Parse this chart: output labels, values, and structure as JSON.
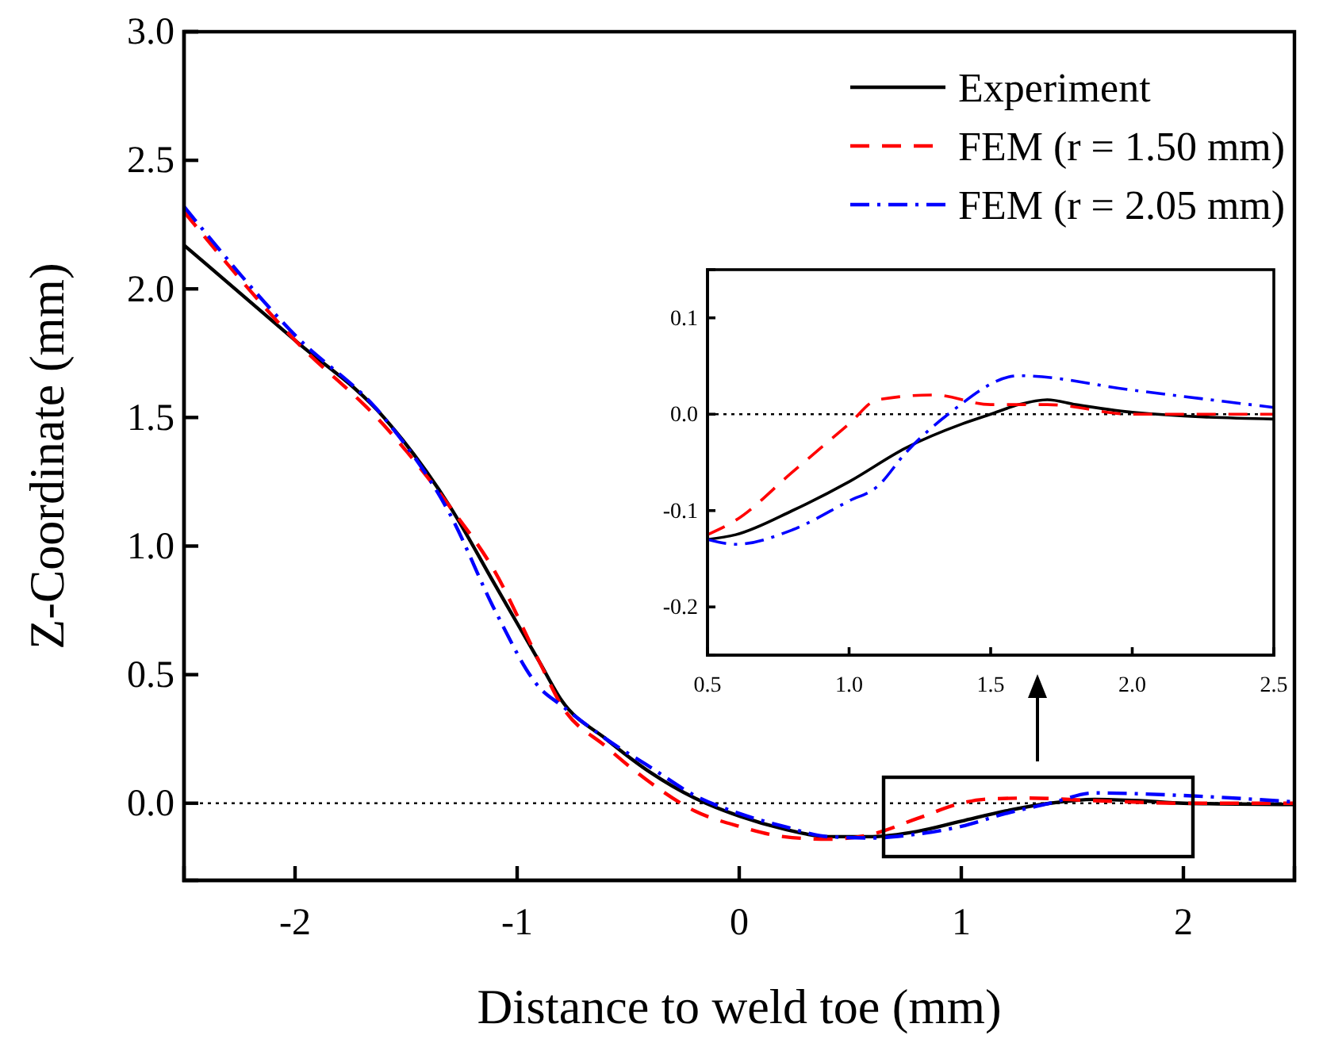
{
  "chart_data": [
    {
      "type": "line",
      "xlabel": "Distance to weld toe (mm)",
      "ylabel": "Z-Coordinate (mm)",
      "xlim": [
        -2.5,
        2.5
      ],
      "ylim": [
        -0.3,
        3.0
      ],
      "xticks": [
        -2,
        -1,
        0,
        1,
        2
      ],
      "yticks": [
        {
          "value": 0,
          "label": "0.0"
        },
        0.5,
        {
          "value": 1,
          "label": "1.0"
        },
        1.5,
        {
          "value": 2,
          "label": "2.0"
        },
        2.5,
        {
          "value": 3,
          "label": "3.0"
        }
      ],
      "legend": "top right",
      "grid": false,
      "ref_lines": [
        {
          "axis": "y",
          "value": 0,
          "line_style": "dotted",
          "color": "#000000"
        }
      ],
      "series": [
        {
          "name": "Experiment",
          "color": "#000000",
          "line_style": "solid",
          "x": [
            -2.5,
            -2,
            -1.6,
            -1.3,
            -1.1,
            -0.9,
            -0.8,
            -0.6,
            -0.4,
            -0.2,
            0,
            0.2,
            0.4,
            0.6,
            0.8,
            1.0,
            1.2,
            1.4,
            1.6,
            1.8,
            2.0,
            2.5
          ],
          "values": [
            2.17,
            1.8,
            1.5,
            1.15,
            0.85,
            0.55,
            0.4,
            0.25,
            0.12,
            0.02,
            -0.05,
            -0.1,
            -0.13,
            -0.13,
            -0.11,
            -0.07,
            -0.03,
            0.0,
            0.015,
            0.01,
            0.0,
            -0.005
          ]
        },
        {
          "name": "FEM (r = 1.50 mm)",
          "color": "#ff0000",
          "line_style": "dashed",
          "x": [
            -2.5,
            -2,
            -1.6,
            -1.3,
            -1.1,
            -0.9,
            -0.8,
            -0.6,
            -0.4,
            -0.2,
            0,
            0.2,
            0.4,
            0.6,
            0.8,
            1.0,
            1.1,
            1.3,
            1.6,
            2.0,
            2.5
          ],
          "values": [
            2.3,
            1.8,
            1.47,
            1.15,
            0.9,
            0.55,
            0.38,
            0.22,
            0.08,
            -0.03,
            -0.09,
            -0.13,
            -0.14,
            -0.12,
            -0.06,
            0.0,
            0.015,
            0.02,
            0.01,
            0.0,
            0.0
          ]
        },
        {
          "name": "FEM (r = 2.05 mm)",
          "color": "#0000ff",
          "line_style": "dashdot",
          "x": [
            -2.5,
            -2,
            -1.6,
            -1.3,
            -1.1,
            -0.9,
            -0.8,
            -0.6,
            -0.4,
            -0.2,
            0,
            0.2,
            0.4,
            0.6,
            0.8,
            1.0,
            1.2,
            1.4,
            1.6,
            2.0,
            2.5
          ],
          "values": [
            2.32,
            1.82,
            1.5,
            1.12,
            0.75,
            0.45,
            0.38,
            0.25,
            0.14,
            0.03,
            -0.04,
            -0.09,
            -0.13,
            -0.135,
            -0.12,
            -0.09,
            -0.04,
            0.0,
            0.04,
            0.03,
            0.005
          ]
        }
      ]
    },
    {
      "type": "line",
      "xlim": [
        0.5,
        2.5
      ],
      "ylim": [
        -0.25,
        0.15
      ],
      "xticks": [
        0.5,
        {
          "value": 1,
          "label": "1.0"
        },
        1.5,
        {
          "value": 2,
          "label": "2.0"
        },
        2.5
      ],
      "yticks": [
        -0.2,
        -0.1,
        {
          "value": 0,
          "label": "0.0"
        },
        0.1
      ],
      "grid": false,
      "ref_lines": [
        {
          "axis": "y",
          "value": 0,
          "line_style": "dotted",
          "color": "#000000"
        }
      ],
      "series": [
        {
          "color": "#000000",
          "line_style": "solid",
          "x": [
            0.5,
            0.6,
            0.8,
            1.0,
            1.2,
            1.4,
            1.5,
            1.6,
            1.7,
            1.8,
            2.0,
            2.5
          ],
          "values": [
            -0.13,
            -0.125,
            -0.1,
            -0.07,
            -0.035,
            -0.01,
            0.0,
            0.01,
            0.015,
            0.01,
            0.002,
            -0.005
          ]
        },
        {
          "color": "#ff0000",
          "line_style": "dashed",
          "x": [
            0.5,
            0.6,
            0.8,
            1.0,
            1.1,
            1.3,
            1.5,
            1.7,
            2.0,
            2.5
          ],
          "values": [
            -0.125,
            -0.11,
            -0.06,
            -0.01,
            0.015,
            0.02,
            0.01,
            0.01,
            0.0,
            0.0
          ]
        },
        {
          "color": "#0000ff",
          "line_style": "dashdot",
          "x": [
            0.5,
            0.6,
            0.8,
            1.0,
            1.1,
            1.2,
            1.35,
            1.6,
            2.0,
            2.5
          ],
          "values": [
            -0.13,
            -0.135,
            -0.12,
            -0.09,
            -0.075,
            -0.04,
            0.0,
            0.04,
            0.025,
            0.007
          ]
        }
      ]
    }
  ]
}
